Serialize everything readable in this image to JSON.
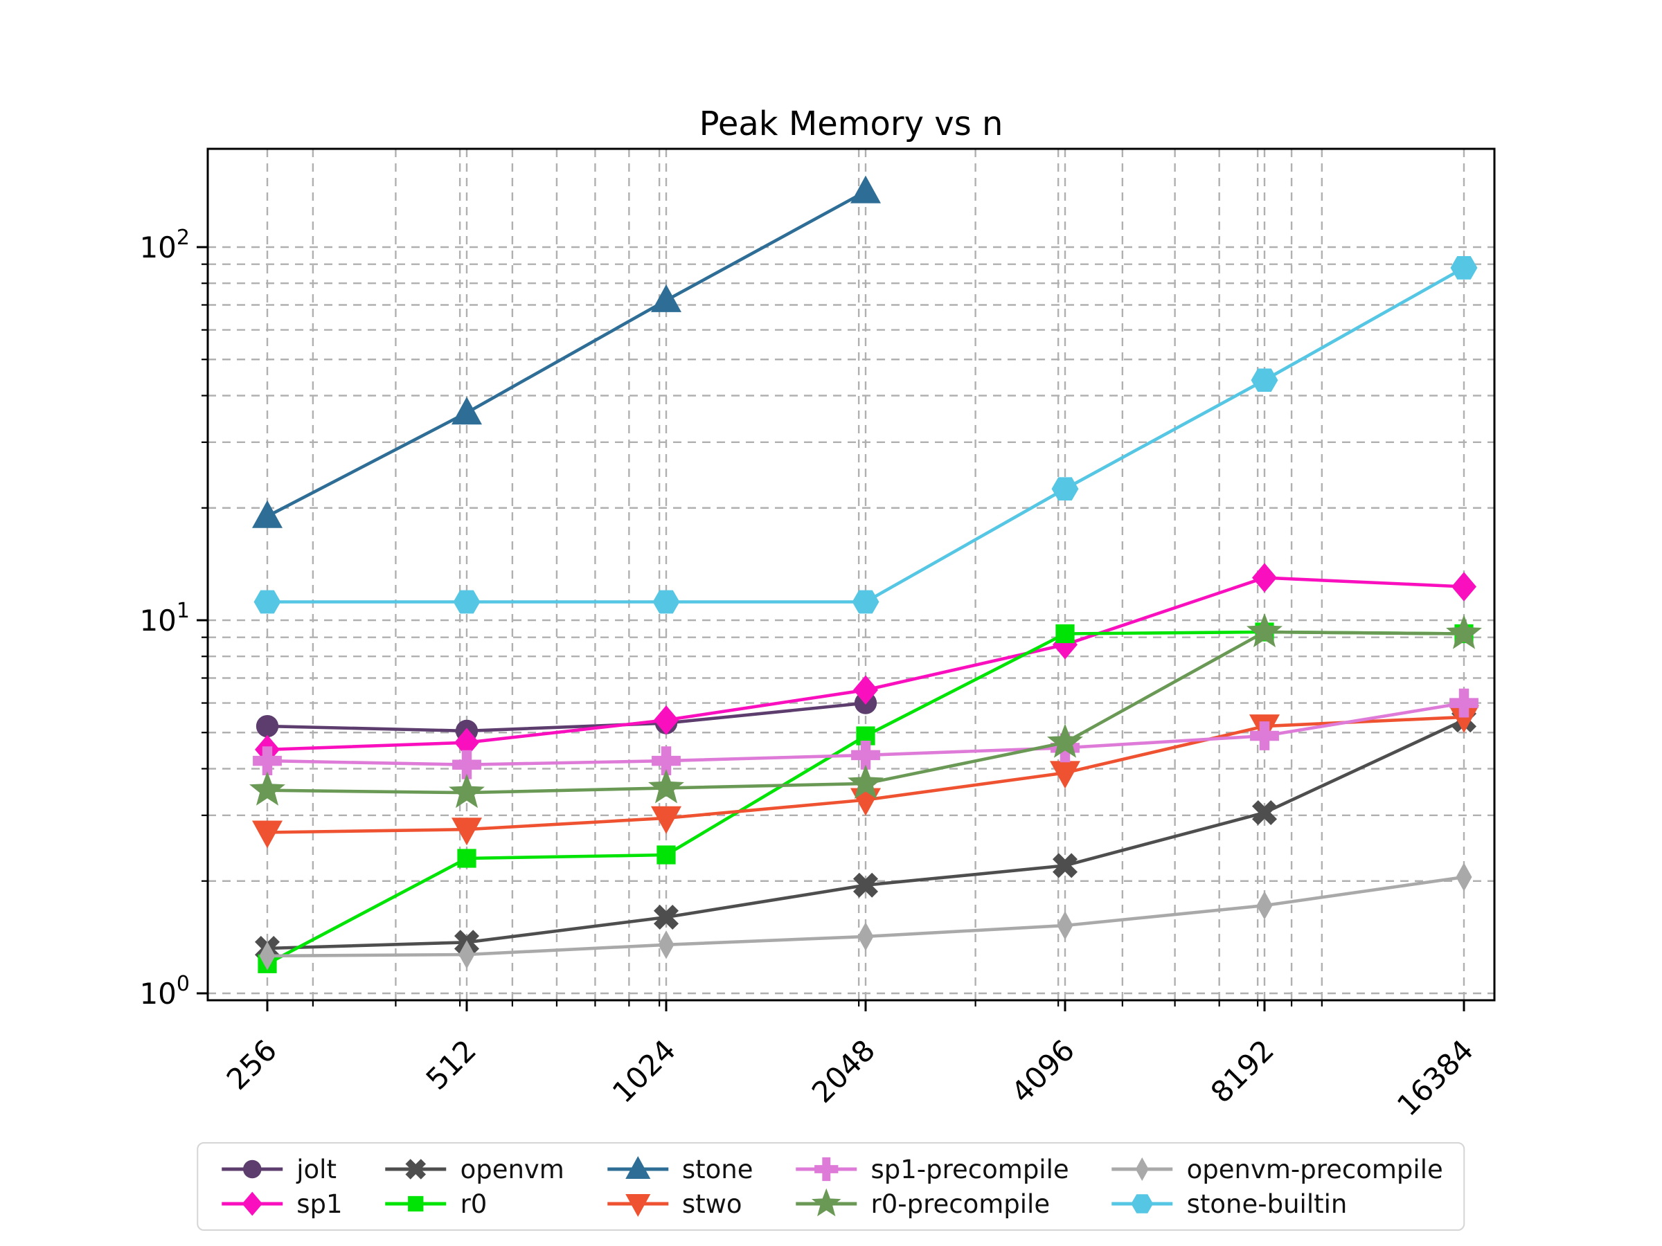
{
  "title": "Peak Memory vs n",
  "chart_data": {
    "type": "line",
    "title": "Peak Memory vs n",
    "xlabel": "",
    "ylabel": "",
    "x_scale": "log2",
    "y_scale": "log10",
    "grid": true,
    "legend_position": "bottom-center",
    "xlim": [
      208,
      18200
    ],
    "ylim": [
      0.96,
      185
    ],
    "x_ticks": [
      256,
      512,
      1024,
      2048,
      4096,
      8192,
      16384
    ],
    "x_tick_labels": [
      "256",
      "512",
      "1024",
      "2048",
      "4096",
      "8192",
      "16384"
    ],
    "y_ticks": [
      {
        "value": 1,
        "base": "10",
        "exp": "0"
      },
      {
        "value": 10,
        "base": "10",
        "exp": "1"
      },
      {
        "value": 100,
        "base": "10",
        "exp": "2"
      }
    ],
    "series": [
      {
        "name": "jolt",
        "color": "#5C3D6E",
        "marker": "circle",
        "x": [
          256,
          512,
          1024,
          2048
        ],
        "y": [
          5.2,
          5.05,
          5.3,
          6.0
        ]
      },
      {
        "name": "sp1",
        "color": "#FA0FBE",
        "marker": "diamond",
        "x": [
          256,
          512,
          1024,
          2048,
          4096,
          8192,
          16384
        ],
        "y": [
          4.5,
          4.7,
          5.4,
          6.5,
          8.6,
          13.0,
          12.3
        ]
      },
      {
        "name": "openvm",
        "color": "#4E4E4E",
        "marker": "x",
        "x": [
          256,
          512,
          1024,
          2048,
          4096,
          8192,
          16384
        ],
        "y": [
          1.32,
          1.37,
          1.6,
          1.95,
          2.2,
          3.05,
          5.4
        ]
      },
      {
        "name": "r0",
        "color": "#00E405",
        "marker": "square",
        "x": [
          256,
          512,
          1024,
          2048,
          4096,
          8192,
          16384
        ],
        "y": [
          1.2,
          2.3,
          2.35,
          4.9,
          9.2,
          9.3,
          9.2
        ]
      },
      {
        "name": "stone",
        "color": "#2E6E96",
        "marker": "triangle-up",
        "x": [
          256,
          512,
          1024,
          2048
        ],
        "y": [
          19,
          36,
          72,
          141
        ]
      },
      {
        "name": "stwo",
        "color": "#EF5231",
        "marker": "triangle-down",
        "x": [
          256,
          512,
          1024,
          2048,
          4096,
          8192,
          16384
        ],
        "y": [
          2.7,
          2.75,
          2.95,
          3.3,
          3.9,
          5.2,
          5.5
        ]
      },
      {
        "name": "sp1-precompile",
        "color": "#DE7AD7",
        "marker": "plus",
        "x": [
          256,
          512,
          1024,
          2048,
          4096,
          8192,
          16384
        ],
        "y": [
          4.2,
          4.1,
          4.2,
          4.35,
          4.55,
          4.9,
          6.0
        ]
      },
      {
        "name": "r0-precompile",
        "color": "#6A9955",
        "marker": "star",
        "x": [
          256,
          512,
          1024,
          2048,
          4096,
          8192,
          16384
        ],
        "y": [
          3.5,
          3.45,
          3.55,
          3.65,
          4.7,
          9.3,
          9.2
        ]
      },
      {
        "name": "openvm-precompile",
        "color": "#A9A9A9",
        "marker": "thin-diamond",
        "x": [
          256,
          512,
          1024,
          2048,
          4096,
          8192,
          16384
        ],
        "y": [
          1.26,
          1.27,
          1.35,
          1.42,
          1.52,
          1.72,
          2.05
        ]
      },
      {
        "name": "stone-builtin",
        "color": "#55C6E3",
        "marker": "hexagon",
        "x": [
          256,
          512,
          1024,
          2048,
          4096,
          8192,
          16384
        ],
        "y": [
          11.2,
          11.2,
          11.2,
          11.2,
          22.5,
          44,
          88
        ]
      }
    ]
  }
}
